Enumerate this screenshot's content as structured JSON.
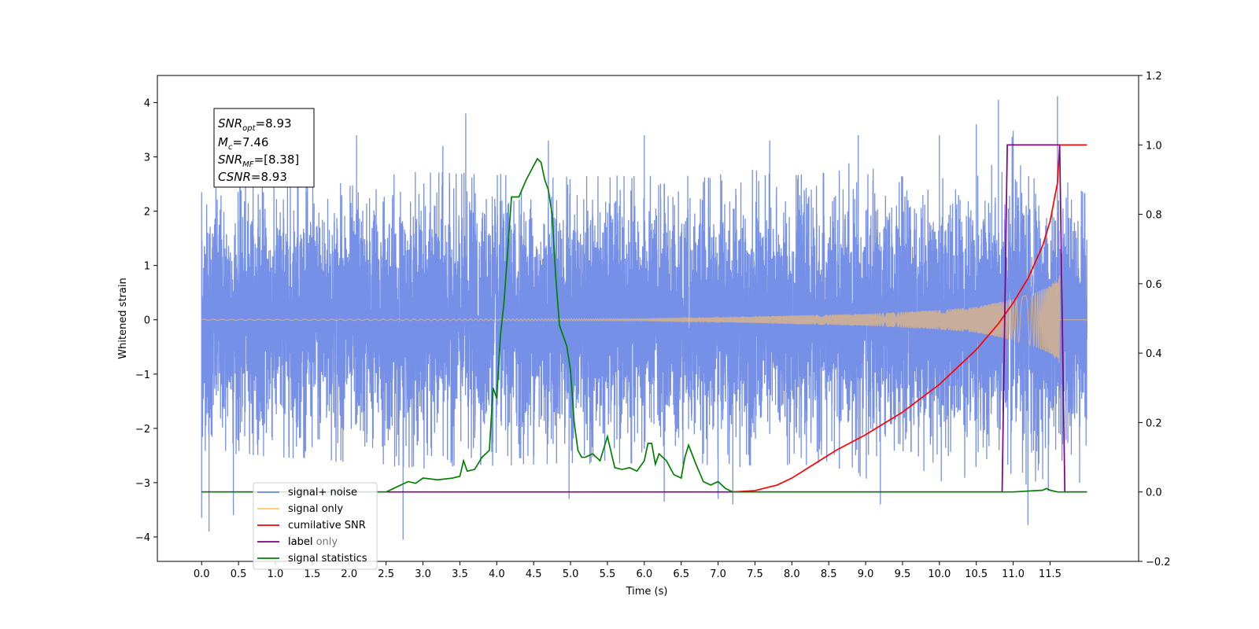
{
  "chart_data": {
    "type": "line",
    "xlabel": "Time (s)",
    "ylabel": "Whitened strain",
    "xlim": [
      -0.6,
      12.7
    ],
    "ylim_left": [
      -4.45,
      4.5
    ],
    "ylim_right": [
      -0.2,
      1.2
    ],
    "x_ticks": [
      "0.0",
      "0.5",
      "1.0",
      "1.5",
      "2.0",
      "2.5",
      "3.0",
      "3.5",
      "4.0",
      "4.5",
      "5.0",
      "5.5",
      "6.0",
      "6.5",
      "7.0",
      "7.5",
      "8.0",
      "8.5",
      "9.0",
      "9.5",
      "10.0",
      "10.5",
      "11.0",
      "11.5"
    ],
    "y_ticks_left": [
      "4",
      "3",
      "2",
      "1",
      "0",
      "−1",
      "−2",
      "−3",
      "−4"
    ],
    "y_ticks_left_values": [
      4,
      3,
      2,
      1,
      0,
      -1,
      -2,
      -3,
      -4
    ],
    "y_ticks_right": [
      "1.2",
      "1.0",
      "0.8",
      "0.6",
      "0.4",
      "0.2",
      "0.0",
      "−0.2"
    ],
    "y_ticks_right_values": [
      1.2,
      1.0,
      0.8,
      0.6,
      0.4,
      0.2,
      0.0,
      -0.2
    ],
    "annotation": {
      "snr_opt_value": "=8.93",
      "mc_value": "=7.46",
      "snr_mf_value": "=[8.38]",
      "csnr_value": "=8.93"
    },
    "legend": {
      "placement": "lower-left",
      "entries": [
        {
          "label": "signal+ noise",
          "color": "#6a87e6"
        },
        {
          "label": "signal only",
          "color": "#ffc266"
        },
        {
          "label": "cumilative SNR",
          "color": "#ff0000"
        },
        {
          "label": "label",
          "color": "#800080"
        },
        {
          "label": "signal statistics",
          "color": "#008000"
        }
      ],
      "obscured_label": "label only"
    },
    "series": [
      {
        "name": "signal+ noise",
        "axis": "left",
        "color": "#6a87e6",
        "x_range": [
          0.0,
          12.0
        ],
        "noise_std": 1.05,
        "envelope_points": [
          [
            0.0,
            2.3
          ],
          [
            3.0,
            2.6
          ],
          [
            5.0,
            2.5
          ],
          [
            8.0,
            2.6
          ],
          [
            11.0,
            3.0
          ],
          [
            12.0,
            2.2
          ]
        ],
        "spikes": [
          [
            0.0,
            2.35
          ],
          [
            0.0,
            -3.65
          ],
          [
            0.1,
            -3.9
          ],
          [
            0.43,
            -3.6
          ],
          [
            1.3,
            3.3
          ],
          [
            2.1,
            3.4
          ],
          [
            3.27,
            3.2
          ],
          [
            3.58,
            3.8
          ],
          [
            2.73,
            -4.05
          ],
          [
            4.7,
            3.3
          ],
          [
            4.98,
            -3.3
          ],
          [
            6.0,
            3.4
          ],
          [
            6.27,
            -3.35
          ],
          [
            7.0,
            -3.3
          ],
          [
            7.2,
            -3.4
          ],
          [
            7.7,
            3.3
          ],
          [
            8.9,
            3.4
          ],
          [
            9.2,
            -3.4
          ],
          [
            10.0,
            3.4
          ],
          [
            10.5,
            3.6
          ],
          [
            10.8,
            4.05
          ],
          [
            11.0,
            3.48
          ],
          [
            11.2,
            -3.78
          ],
          [
            11.6,
            4.12
          ],
          [
            11.9,
            -3.0
          ]
        ]
      },
      {
        "name": "signal only",
        "axis": "left",
        "color": "#ffc266",
        "x_range": [
          0.0,
          12.0
        ],
        "chirp_end": 11.63,
        "chirp_start_freq": 8,
        "chirp_end_freq": 140,
        "amplitude_points": [
          [
            0.0,
            0.01
          ],
          [
            6.0,
            0.02
          ],
          [
            7.0,
            0.04
          ],
          [
            8.0,
            0.08
          ],
          [
            9.0,
            0.11
          ],
          [
            10.0,
            0.18
          ],
          [
            10.5,
            0.24
          ],
          [
            11.0,
            0.38
          ],
          [
            11.3,
            0.5
          ],
          [
            11.5,
            0.62
          ],
          [
            11.63,
            0.82
          ]
        ]
      },
      {
        "name": "cumilative SNR",
        "axis": "right",
        "color": "#ff0000",
        "x": [
          7.2,
          7.5,
          7.8,
          8.0,
          8.3,
          8.6,
          9.0,
          9.5,
          10.0,
          10.5,
          10.8,
          11.0,
          11.2,
          11.4,
          11.5,
          11.6,
          11.63,
          12.0
        ],
        "y": [
          0.0,
          0.004,
          0.02,
          0.04,
          0.08,
          0.12,
          0.165,
          0.23,
          0.31,
          0.41,
          0.485,
          0.545,
          0.615,
          0.71,
          0.78,
          0.89,
          1.0,
          1.0
        ]
      },
      {
        "name": "label",
        "axis": "right",
        "color": "#800080",
        "x": [
          0.0,
          10.85,
          10.92,
          11.63,
          11.7,
          12.0
        ],
        "y": [
          0.0,
          0.0,
          1.0,
          1.0,
          0.0,
          0.0
        ]
      },
      {
        "name": "signal statistics",
        "axis": "right",
        "color": "#008000",
        "x": [
          0.0,
          2.5,
          2.6,
          2.7,
          2.8,
          2.9,
          3.0,
          3.2,
          3.4,
          3.5,
          3.55,
          3.6,
          3.7,
          3.8,
          3.9,
          3.95,
          4.0,
          4.05,
          4.1,
          4.2,
          4.3,
          4.4,
          4.5,
          4.55,
          4.6,
          4.65,
          4.7,
          4.75,
          4.8,
          4.85,
          4.9,
          4.95,
          5.0,
          5.05,
          5.1,
          5.15,
          5.2,
          5.3,
          5.4,
          5.5,
          5.6,
          5.7,
          5.8,
          5.9,
          6.0,
          6.05,
          6.1,
          6.15,
          6.2,
          6.3,
          6.4,
          6.5,
          6.55,
          6.6,
          6.7,
          6.8,
          6.9,
          7.0,
          7.1,
          7.2,
          7.5,
          8.0,
          9.0,
          10.0,
          11.0,
          11.4,
          11.45,
          11.5,
          11.6,
          12.0
        ],
        "y": [
          0.0,
          0.0,
          0.01,
          0.02,
          0.03,
          0.025,
          0.04,
          0.035,
          0.04,
          0.045,
          0.09,
          0.06,
          0.065,
          0.1,
          0.12,
          0.3,
          0.27,
          0.45,
          0.55,
          0.85,
          0.85,
          0.9,
          0.94,
          0.96,
          0.95,
          0.9,
          0.87,
          0.8,
          0.62,
          0.48,
          0.45,
          0.42,
          0.35,
          0.2,
          0.12,
          0.1,
          0.1,
          0.11,
          0.09,
          0.16,
          0.07,
          0.065,
          0.07,
          0.06,
          0.09,
          0.14,
          0.14,
          0.08,
          0.11,
          0.09,
          0.05,
          0.04,
          0.1,
          0.135,
          0.08,
          0.03,
          0.02,
          0.03,
          0.01,
          0.0,
          0.0,
          0.0,
          0.0,
          0.0,
          0.0,
          0.005,
          0.01,
          0.005,
          0.0,
          0.0
        ]
      }
    ]
  }
}
